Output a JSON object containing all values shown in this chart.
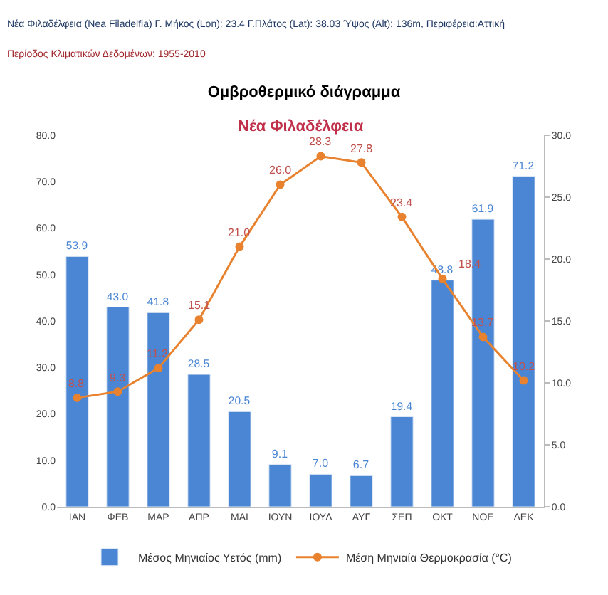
{
  "chart_data": {
    "type": "bar",
    "title": "Ομβροθερμικό διάγραμμα",
    "subtitle": "Νέα Φιλαδέλφεια",
    "annotations": [
      "Νέα Φιλαδέλφεια (Nea Filadelfia) Γ. Μήκος (Lon): 23.4 Γ.Πλάτος (Lat): 38.03 Ύψος (Alt): 136m, Περιφέρεια:Αττική",
      "Περίοδος Κλιματικών Δεδομένων: 1955-2010"
    ],
    "categories": [
      "ΙΑΝ",
      "ΦΕΒ",
      "ΜΑΡ",
      "ΑΠΡ",
      "ΜΑΙ",
      "ΙΟΥΝ",
      "ΙΟΥΛ",
      "ΑΥΓ",
      "ΣΕΠ",
      "ΟΚΤ",
      "ΝΟΕ",
      "ΔΕΚ"
    ],
    "series": [
      {
        "name": "Μέσος Μηνιαίος Υετός (mm)",
        "color": "#4a86d4",
        "values": [
          53.9,
          43.0,
          41.8,
          28.5,
          20.5,
          9.1,
          7.0,
          6.7,
          19.4,
          48.8,
          61.9,
          71.2
        ],
        "value_labels": [
          "53.9",
          "43.0",
          "41.8",
          "28.5",
          "20.5",
          "9.1",
          "7.0",
          "6.7",
          "19.4",
          "48.8",
          "61.9",
          "71.2"
        ]
      },
      {
        "name": "Μέση Μηνιαία Θερμοκρασία (°C)",
        "type": "line",
        "axis": "y2",
        "color": "#e8822e",
        "values": [
          8.8,
          9.3,
          11.2,
          15.1,
          21.0,
          26.0,
          28.3,
          27.8,
          23.4,
          18.4,
          13.7,
          10.2
        ],
        "value_labels": [
          "8.8",
          "9.3",
          "11.2",
          "15.1",
          "21.0",
          "26.0",
          "28.3",
          "27.8",
          "23.4",
          "18.4",
          "13.7",
          "10.2"
        ]
      }
    ],
    "ylim": [
      0,
      80
    ],
    "yticks": [
      "0.0",
      "10.0",
      "20.0",
      "30.0",
      "40.0",
      "50.0",
      "60.0",
      "70.0",
      "80.0"
    ],
    "y2lim": [
      0,
      30
    ],
    "y2ticks": [
      "0.0",
      "5.0",
      "10.0",
      "15.0",
      "20.0",
      "25.0",
      "30.0"
    ],
    "marker": "circle",
    "line_style": "solid",
    "legend": "bottom"
  }
}
